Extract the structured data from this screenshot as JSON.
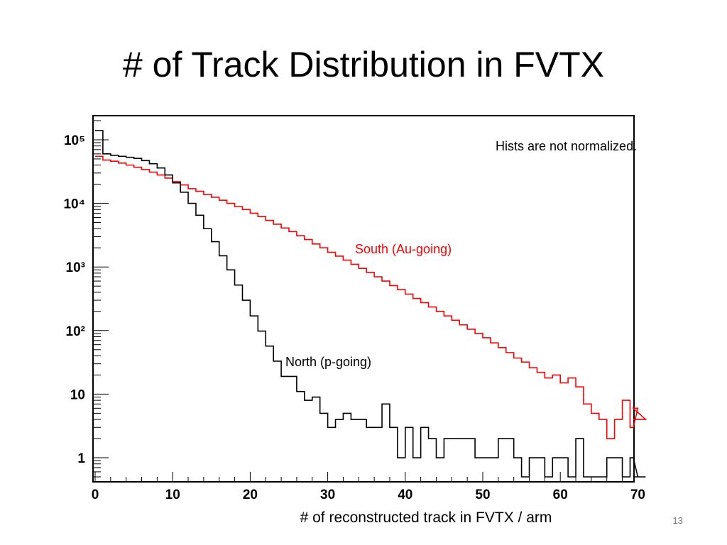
{
  "slide": {
    "title": "# of Track Distribution in FVTX",
    "page_number": "13"
  },
  "chart_data": {
    "type": "line",
    "title": "",
    "xlabel": "# of reconstructed track in FVTX / arm",
    "ylabel": "",
    "xlim": [
      0,
      72
    ],
    "ylim": [
      0.5,
      200000
    ],
    "y_scale": "log",
    "grid": false,
    "x_ticks": [
      0,
      10,
      20,
      30,
      40,
      50,
      60,
      70
    ],
    "y_ticks": [
      {
        "value": 1,
        "label": "1"
      },
      {
        "value": 10,
        "label": "10"
      },
      {
        "value": 100,
        "label": "10²"
      },
      {
        "value": 1000,
        "label": "10³"
      },
      {
        "value": 10000,
        "label": "10⁴"
      },
      {
        "value": 100000,
        "label": "10⁵"
      }
    ],
    "annotations": [
      {
        "text": "Hists are not normalized."
      },
      {
        "text": "South (Au-going)"
      },
      {
        "text": "North (p-going)"
      }
    ],
    "series": [
      {
        "name": "South (Au-going)",
        "color": "#ff0000",
        "x_start": 0,
        "bin_width": 1,
        "values": [
          55000,
          48000,
          46000,
          43000,
          40000,
          37000,
          34000,
          31000,
          28000,
          25000,
          22000,
          19500,
          17000,
          15500,
          13800,
          12500,
          11200,
          10000,
          8900,
          8000,
          7000,
          6200,
          5400,
          4700,
          4100,
          3600,
          3100,
          2700,
          2300,
          2000,
          1700,
          1480,
          1280,
          1100,
          950,
          820,
          700,
          600,
          510,
          440,
          375,
          320,
          275,
          235,
          200,
          170,
          145,
          123,
          105,
          90,
          77,
          64,
          54,
          45,
          37,
          32,
          26,
          22,
          18,
          20,
          15,
          18,
          13,
          7,
          5,
          4,
          2,
          4,
          8,
          3,
          6,
          4
        ]
      },
      {
        "name": "North (p-going)",
        "color": "#000000",
        "x_start": 0,
        "bin_width": 1,
        "values": [
          140000,
          60000,
          57000,
          55000,
          53000,
          51000,
          47000,
          42000,
          36000,
          28000,
          21000,
          15000,
          10000,
          6500,
          4000,
          2500,
          1500,
          900,
          520,
          300,
          170,
          98,
          57,
          33,
          19,
          19,
          11,
          8,
          9,
          5,
          3,
          4,
          5,
          4,
          4,
          3,
          3,
          7,
          3,
          1,
          3,
          1,
          3,
          2,
          1,
          2,
          2,
          2,
          2,
          1,
          1,
          1,
          2,
          2,
          1,
          0.5,
          1,
          1,
          0.5,
          1,
          1,
          0.5,
          2,
          0.5,
          0.5,
          0.5,
          1,
          1,
          0.5,
          1,
          0.5,
          0.5
        ]
      }
    ]
  }
}
